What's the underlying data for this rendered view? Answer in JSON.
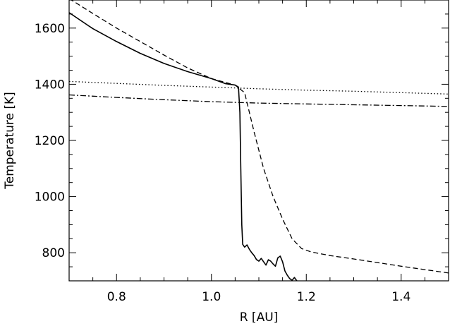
{
  "chart_data": {
    "type": "line",
    "title": "",
    "xlabel": "R [AU]",
    "ylabel": "Temperature [K]",
    "xlim": [
      0.7,
      1.5
    ],
    "ylim": [
      700,
      1700
    ],
    "xticks": [
      0.8,
      1.0,
      1.2,
      1.4
    ],
    "xtick_labels": [
      "0.8",
      "1.0",
      "1.2",
      "1.4"
    ],
    "yticks": [
      800,
      1000,
      1200,
      1400,
      1600
    ],
    "ytick_labels": [
      "800",
      "1000",
      "1200",
      "1400",
      "1600"
    ],
    "grid": false,
    "legend": "none",
    "series": [
      {
        "style": "solid",
        "color": "#000000",
        "x": [
          0.7,
          0.75,
          0.8,
          0.85,
          0.9,
          0.95,
          1.0,
          1.03,
          1.05,
          1.057,
          1.06,
          1.062,
          1.064,
          1.066,
          1.07,
          1.075,
          1.08,
          1.085,
          1.09,
          1.095,
          1.1,
          1.105,
          1.11,
          1.115,
          1.12,
          1.125,
          1.13,
          1.135,
          1.14,
          1.145,
          1.15,
          1.155,
          1.16,
          1.165,
          1.17,
          1.175,
          1.18
        ],
        "y": [
          1655,
          1598,
          1552,
          1510,
          1474,
          1445,
          1420,
          1402,
          1397,
          1390,
          1300,
          1100,
          900,
          830,
          820,
          828,
          812,
          800,
          790,
          776,
          770,
          780,
          768,
          756,
          775,
          770,
          760,
          752,
          782,
          788,
          768,
          735,
          720,
          708,
          702,
          712,
          700
        ]
      },
      {
        "style": "dashed",
        "color": "#000000",
        "x": [
          0.7,
          0.75,
          0.8,
          0.85,
          0.9,
          0.95,
          1.0,
          1.05,
          1.07,
          1.09,
          1.11,
          1.13,
          1.15,
          1.17,
          1.19,
          1.21,
          1.25,
          1.3,
          1.35,
          1.4,
          1.45,
          1.5
        ],
        "y": [
          1705,
          1652,
          1600,
          1552,
          1504,
          1458,
          1420,
          1397,
          1370,
          1230,
          1100,
          1000,
          920,
          850,
          815,
          803,
          790,
          778,
          765,
          752,
          740,
          728
        ]
      },
      {
        "style": "dotted",
        "color": "#000000",
        "x": [
          0.7,
          0.8,
          0.9,
          1.0,
          1.1,
          1.2,
          1.3,
          1.4,
          1.5
        ],
        "y": [
          1410,
          1403,
          1396,
          1390,
          1384,
          1379,
          1375,
          1370,
          1365
        ]
      },
      {
        "style": "dashdot",
        "color": "#000000",
        "x": [
          0.7,
          0.8,
          0.9,
          1.0,
          1.1,
          1.2,
          1.3,
          1.4,
          1.5
        ],
        "y": [
          1362,
          1353,
          1345,
          1338,
          1333,
          1330,
          1327,
          1324,
          1321
        ]
      }
    ]
  }
}
